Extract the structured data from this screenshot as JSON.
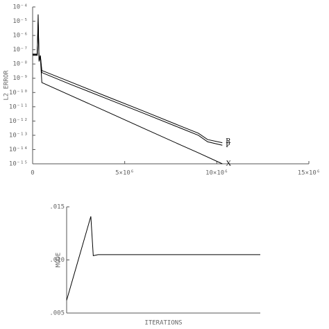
{
  "chart_data": [
    {
      "type": "line",
      "ylabel": "L2 ERROR",
      "log_y": true,
      "xlim": [
        0,
        15000000
      ],
      "ylim": [
        1e-15,
        0.0001
      ],
      "xticks": [
        0,
        {
          "value": 5000000,
          "label": "5×10⁶"
        },
        {
          "value": 10000000,
          "label": "10×10⁶"
        },
        {
          "value": 15000000,
          "label": "15×10⁶"
        }
      ],
      "yticks": [
        {
          "value": 1e-15,
          "label": "10⁻¹⁵"
        },
        {
          "value": 1e-14,
          "label": "10⁻¹⁴"
        },
        {
          "value": 1e-13,
          "label": "10⁻¹³"
        },
        {
          "value": 1e-12,
          "label": "10⁻¹²"
        },
        {
          "value": 1e-11,
          "label": "10⁻¹¹"
        },
        {
          "value": 1e-10,
          "label": "10⁻¹⁰"
        },
        {
          "value": 1e-09,
          "label": "10⁻⁹"
        },
        {
          "value": 1e-08,
          "label": "10⁻⁸"
        },
        {
          "value": 1e-07,
          "label": "10⁻⁷"
        },
        {
          "value": 1e-06,
          "label": "10⁻⁶"
        },
        {
          "value": 1e-05,
          "label": "10⁻⁵"
        },
        {
          "value": 0.0001,
          "label": "10⁻⁴"
        }
      ],
      "series": [
        {
          "name": "R",
          "color": "#000000",
          "x": [
            0,
            250000,
            300000,
            350000,
            420000,
            500000,
            2000000,
            4000000,
            6000000,
            8000000,
            9000000,
            9500000,
            10300000
          ],
          "values": [
            5e-08,
            5e-08,
            1e-05,
            2e-08,
            4e-08,
            3.5e-09,
            5.9e-10,
            5.4e-11,
            5.1e-12,
            4.6e-13,
            1.4e-13,
            5e-14,
            3e-14
          ]
        },
        {
          "name": "P",
          "color": "#000000",
          "x": [
            0,
            250000,
            300000,
            350000,
            420000,
            500000,
            2000000,
            4000000,
            6000000,
            8000000,
            9000000,
            9500000,
            10300000
          ],
          "values": [
            4.5e-08,
            4.5e-08,
            8e-06,
            1.8e-08,
            3.5e-08,
            2.5e-09,
            4e-10,
            3.8e-11,
            3.6e-12,
            3.3e-13,
            1e-13,
            3.5e-14,
            2e-14
          ]
        },
        {
          "name": "X",
          "color": "#000000",
          "x": [
            0,
            250000,
            300000,
            350000,
            420000,
            500000,
            2000000,
            4000000,
            6000000,
            8000000,
            9000000,
            10300000
          ],
          "values": [
            4e-08,
            4e-08,
            3e-05,
            1.5e-08,
            3e-08,
            5e-10,
            6.7e-11,
            4.7e-12,
            3.2e-13,
            2.2e-14,
            5.9e-15,
            1e-15
          ]
        }
      ]
    },
    {
      "type": "line",
      "ylabel": "MODE",
      "xlabel": "ITERATIONS",
      "xlim": [
        0,
        80
      ],
      "ylim": [
        0.005,
        0.015
      ],
      "yticks": [
        {
          "value": 0.005,
          "label": ".005"
        },
        {
          "value": 0.01,
          "label": ".010"
        },
        {
          "value": 0.015,
          "label": ".015"
        }
      ],
      "series": [
        {
          "color": "#000000",
          "x": [
            0,
            10,
            11,
            13,
            20,
            80
          ],
          "values": [
            0.0062,
            0.0141,
            0.0104,
            0.0105,
            0.0105,
            0.0105
          ]
        }
      ]
    }
  ]
}
